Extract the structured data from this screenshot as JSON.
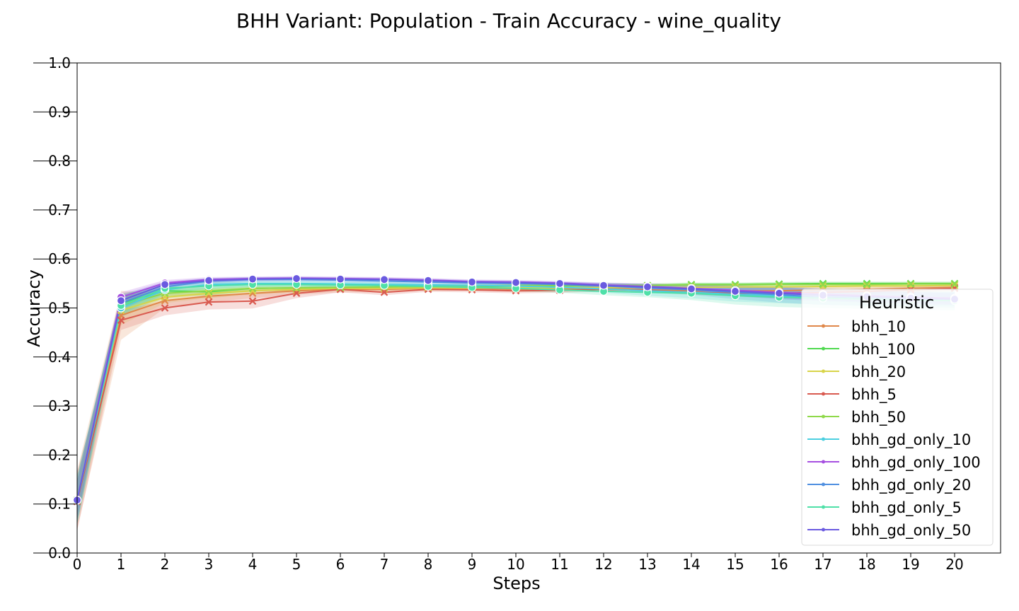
{
  "chart_data": {
    "type": "line",
    "title": "BHH Variant: Population - Train Accuracy - wine_quality",
    "xlabel": "Steps",
    "ylabel": "Accuracy",
    "xlim": [
      0,
      21
    ],
    "ylim": [
      0,
      1.0
    ],
    "xticks": [
      "0",
      "1",
      "2",
      "3",
      "4",
      "5",
      "6",
      "7",
      "8",
      "9",
      "10",
      "11",
      "12",
      "13",
      "14",
      "15",
      "16",
      "17",
      "18",
      "19",
      "20"
    ],
    "yticks": [
      "0.0",
      "0.1",
      "0.2",
      "0.3",
      "0.4",
      "0.5",
      "0.6",
      "0.7",
      "0.8",
      "0.9",
      "1.0"
    ],
    "grid": false,
    "legend": {
      "title": "Heuristic",
      "position": "right"
    },
    "x": [
      0,
      1,
      2,
      3,
      4,
      5,
      6,
      7,
      8,
      9,
      10,
      11,
      12,
      13,
      14,
      15,
      16,
      17,
      18,
      19,
      20
    ],
    "series": [
      {
        "name": "bhh_10",
        "color": "#e0884a",
        "marker": "x",
        "values": [
          0.108,
          0.485,
          0.515,
          0.524,
          0.53,
          0.535,
          0.538,
          0.538,
          0.54,
          0.54,
          0.538,
          0.538,
          0.54,
          0.537,
          0.535,
          0.535,
          0.535,
          0.537,
          0.538,
          0.54,
          0.542
        ],
        "band": [
          0.06,
          0.05,
          0.015,
          0.012,
          0.01,
          0.008,
          0.006,
          0.006,
          0.005,
          0.005,
          0.005,
          0.005,
          0.005,
          0.005,
          0.005,
          0.006,
          0.006,
          0.006,
          0.006,
          0.006,
          0.006
        ]
      },
      {
        "name": "bhh_100",
        "color": "#4fd94f",
        "marker": "x",
        "values": [
          0.108,
          0.51,
          0.535,
          0.533,
          0.54,
          0.541,
          0.542,
          0.543,
          0.543,
          0.544,
          0.545,
          0.545,
          0.546,
          0.546,
          0.548,
          0.548,
          0.549,
          0.55,
          0.55,
          0.55,
          0.55
        ],
        "band": [
          0.04,
          0.02,
          0.01,
          0.008,
          0.006,
          0.005,
          0.005,
          0.005,
          0.004,
          0.004,
          0.004,
          0.004,
          0.004,
          0.004,
          0.004,
          0.004,
          0.004,
          0.004,
          0.004,
          0.004,
          0.004
        ]
      },
      {
        "name": "bhh_20",
        "color": "#d8d44a",
        "marker": "x",
        "values": [
          0.108,
          0.495,
          0.522,
          0.53,
          0.535,
          0.538,
          0.54,
          0.54,
          0.541,
          0.541,
          0.541,
          0.541,
          0.542,
          0.542,
          0.542,
          0.543,
          0.543,
          0.544,
          0.545,
          0.545,
          0.546
        ],
        "band": [
          0.05,
          0.03,
          0.012,
          0.01,
          0.008,
          0.006,
          0.005,
          0.005,
          0.005,
          0.005,
          0.005,
          0.005,
          0.005,
          0.005,
          0.005,
          0.005,
          0.005,
          0.005,
          0.005,
          0.005,
          0.005
        ]
      },
      {
        "name": "bhh_5",
        "color": "#d95a50",
        "marker": "x",
        "values": [
          0.105,
          0.475,
          0.5,
          0.512,
          0.514,
          0.53,
          0.538,
          0.532,
          0.538,
          0.537,
          0.535,
          0.536,
          0.538,
          0.536,
          0.532,
          0.53,
          0.53,
          0.532,
          0.534,
          0.537,
          0.54
        ],
        "band": [
          0.06,
          0.02,
          0.015,
          0.015,
          0.015,
          0.01,
          0.006,
          0.006,
          0.005,
          0.005,
          0.005,
          0.005,
          0.005,
          0.005,
          0.005,
          0.006,
          0.006,
          0.006,
          0.006,
          0.006,
          0.006
        ]
      },
      {
        "name": "bhh_50",
        "color": "#8fd94a",
        "marker": "x",
        "values": [
          0.108,
          0.505,
          0.53,
          0.535,
          0.54,
          0.541,
          0.542,
          0.543,
          0.544,
          0.545,
          0.546,
          0.546,
          0.546,
          0.546,
          0.547,
          0.547,
          0.548,
          0.548,
          0.548,
          0.549,
          0.549
        ],
        "band": [
          0.04,
          0.02,
          0.01,
          0.008,
          0.006,
          0.005,
          0.005,
          0.005,
          0.004,
          0.004,
          0.004,
          0.004,
          0.004,
          0.004,
          0.004,
          0.004,
          0.004,
          0.004,
          0.004,
          0.004,
          0.004
        ]
      },
      {
        "name": "bhh_gd_only_10",
        "color": "#4ccfe0",
        "marker": "o",
        "values": [
          0.108,
          0.5,
          0.537,
          0.548,
          0.55,
          0.55,
          0.549,
          0.548,
          0.547,
          0.546,
          0.545,
          0.542,
          0.539,
          0.535,
          0.532,
          0.528,
          0.525,
          0.522,
          0.52,
          0.518,
          0.518
        ],
        "band": [
          0.05,
          0.02,
          0.01,
          0.008,
          0.006,
          0.006,
          0.006,
          0.006,
          0.006,
          0.006,
          0.006,
          0.006,
          0.008,
          0.01,
          0.012,
          0.015,
          0.015,
          0.015,
          0.015,
          0.015,
          0.015
        ]
      },
      {
        "name": "bhh_gd_only_100",
        "color": "#a64fe0",
        "marker": "o",
        "values": [
          0.108,
          0.522,
          0.551,
          0.558,
          0.56,
          0.561,
          0.56,
          0.559,
          0.557,
          0.554,
          0.553,
          0.551,
          0.547,
          0.544,
          0.54,
          0.536,
          0.532,
          0.528,
          0.525,
          0.522,
          0.52
        ],
        "band": [
          0.04,
          0.01,
          0.006,
          0.005,
          0.004,
          0.004,
          0.004,
          0.004,
          0.004,
          0.004,
          0.004,
          0.004,
          0.005,
          0.006,
          0.008,
          0.01,
          0.012,
          0.012,
          0.012,
          0.012,
          0.012
        ]
      },
      {
        "name": "bhh_gd_only_20",
        "color": "#4f8fe0",
        "marker": "o",
        "values": [
          0.108,
          0.51,
          0.543,
          0.555,
          0.558,
          0.558,
          0.557,
          0.555,
          0.553,
          0.551,
          0.55,
          0.548,
          0.545,
          0.541,
          0.537,
          0.532,
          0.527,
          0.522,
          0.519,
          0.517,
          0.516
        ],
        "band": [
          0.05,
          0.015,
          0.008,
          0.006,
          0.005,
          0.005,
          0.005,
          0.005,
          0.005,
          0.005,
          0.005,
          0.005,
          0.006,
          0.008,
          0.01,
          0.014,
          0.016,
          0.016,
          0.016,
          0.016,
          0.016
        ]
      },
      {
        "name": "bhh_gd_only_5",
        "color": "#4fe0a8",
        "marker": "o",
        "values": [
          0.108,
          0.505,
          0.54,
          0.545,
          0.548,
          0.548,
          0.547,
          0.546,
          0.544,
          0.542,
          0.54,
          0.537,
          0.534,
          0.532,
          0.53,
          0.525,
          0.522,
          0.52,
          0.518,
          0.516,
          0.515
        ],
        "band": [
          0.05,
          0.02,
          0.01,
          0.008,
          0.006,
          0.006,
          0.006,
          0.006,
          0.006,
          0.006,
          0.006,
          0.006,
          0.008,
          0.01,
          0.014,
          0.018,
          0.02,
          0.02,
          0.02,
          0.02,
          0.02
        ]
      },
      {
        "name": "bhh_gd_only_50",
        "color": "#6a5ae0",
        "marker": "o",
        "values": [
          0.108,
          0.515,
          0.548,
          0.556,
          0.559,
          0.56,
          0.559,
          0.558,
          0.556,
          0.553,
          0.552,
          0.55,
          0.546,
          0.543,
          0.539,
          0.534,
          0.53,
          0.526,
          0.523,
          0.52,
          0.518
        ],
        "band": [
          0.04,
          0.012,
          0.006,
          0.005,
          0.004,
          0.004,
          0.004,
          0.004,
          0.004,
          0.004,
          0.004,
          0.004,
          0.005,
          0.006,
          0.008,
          0.01,
          0.012,
          0.012,
          0.012,
          0.012,
          0.012
        ]
      }
    ]
  }
}
